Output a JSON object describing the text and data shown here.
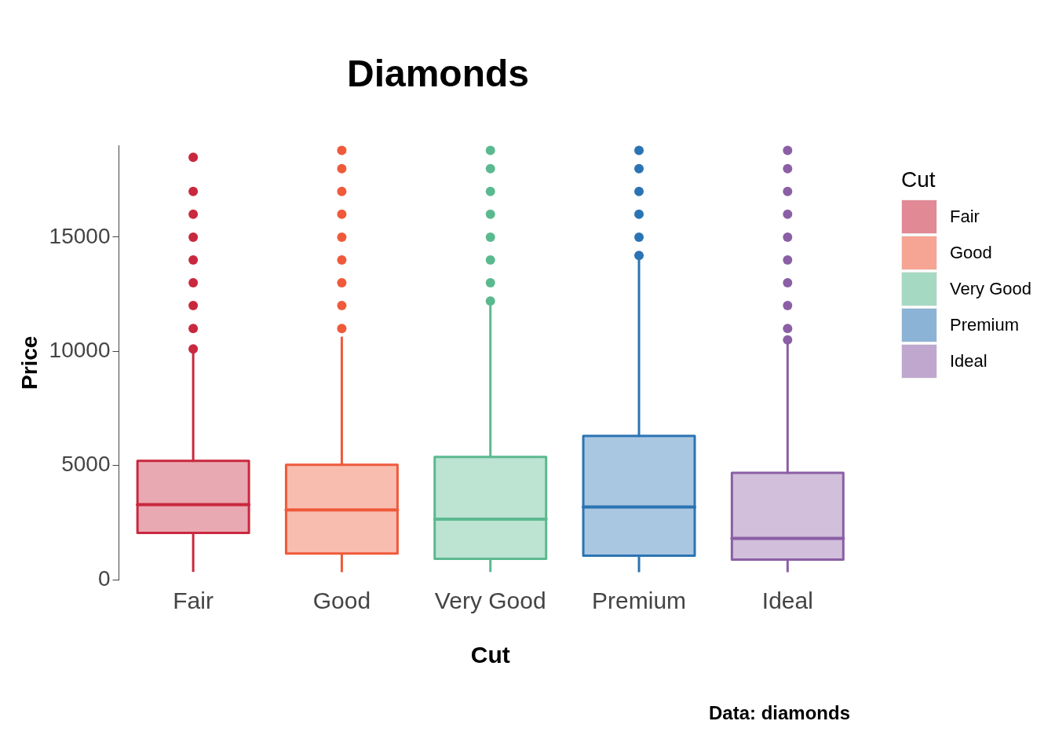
{
  "chart_data": {
    "type": "box",
    "title": "Diamonds",
    "xlabel": "Cut",
    "ylabel": "Price",
    "legend_title": "Cut",
    "legend": "right",
    "grid": false,
    "categories": [
      "Fair",
      "Good",
      "Very Good",
      "Premium",
      "Ideal"
    ],
    "series": [
      {
        "name": "Fair",
        "color": "#c9283e",
        "boxes": [
          {
            "low": 337,
            "q1": 2050,
            "median": 3282,
            "q3": 5206,
            "high": 9900,
            "outliers": [
              10100,
              11000,
              12000,
              13000,
              14000,
              15000,
              16000,
              17000,
              18500
            ]
          },
          null,
          null,
          null,
          null
        ]
      },
      {
        "name": "Good",
        "color": "#ef5a3a",
        "boxes": [
          null,
          {
            "low": 327,
            "q1": 1145,
            "median": 3050,
            "q3": 5028,
            "high": 10600,
            "outliers": [
              11000,
              12000,
              13000,
              14000,
              15000,
              16000,
              17000,
              18000,
              18800
            ]
          },
          null,
          null,
          null
        ]
      },
      {
        "name": "Very Good",
        "color": "#5bb98f",
        "boxes": [
          null,
          null,
          {
            "low": 336,
            "q1": 912,
            "median": 2648,
            "q3": 5373,
            "high": 12000,
            "outliers": [
              12200,
              13000,
              14000,
              15000,
              16000,
              17000,
              18000,
              18800
            ]
          },
          null,
          null
        ]
      },
      {
        "name": "Premium",
        "color": "#2b74b3",
        "boxes": [
          null,
          null,
          null,
          {
            "low": 326,
            "q1": 1046,
            "median": 3185,
            "q3": 6296,
            "high": 14000,
            "outliers": [
              14200,
              15000,
              16000,
              17000,
              18000,
              18800
            ]
          },
          null
        ]
      },
      {
        "name": "Ideal",
        "color": "#8b5fa5",
        "boxes": [
          null,
          null,
          null,
          null,
          {
            "low": 326,
            "q1": 878,
            "median": 1810,
            "q3": 4678,
            "high": 10300,
            "outliers": [
              10500,
              11000,
              12000,
              13000,
              14000,
              15000,
              16000,
              17000,
              18000,
              18800
            ]
          }
        ]
      }
    ],
    "ylim": [
      0,
      19000
    ],
    "yticks": [
      0,
      5000,
      10000,
      15000
    ],
    "annotations": [
      "Data: diamonds"
    ]
  }
}
